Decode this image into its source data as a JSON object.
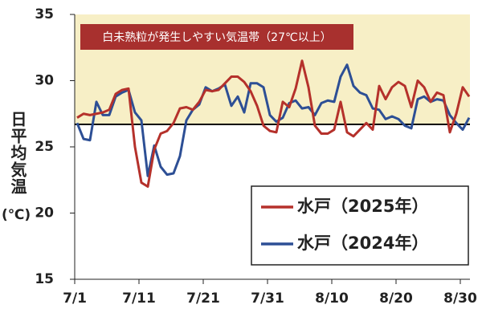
{
  "chart_data": {
    "type": "line",
    "y_label": "日平均気温",
    "y_unit": "(℃)",
    "annotation": "白未熟粒が発生しやすい気温帯（27℃以上）",
    "threshold": 26.7,
    "categories": [
      "7/1",
      null,
      null,
      null,
      null,
      null,
      null,
      null,
      null,
      null,
      "7/11",
      null,
      null,
      null,
      null,
      null,
      null,
      null,
      null,
      null,
      "7/21",
      null,
      null,
      null,
      null,
      null,
      null,
      null,
      null,
      null,
      "7/31",
      null,
      null,
      null,
      null,
      null,
      null,
      null,
      null,
      null,
      "8/10",
      null,
      null,
      null,
      null,
      null,
      null,
      null,
      null,
      null,
      "8/20",
      null,
      null,
      null,
      null,
      null,
      null,
      null,
      null,
      null,
      "8/30",
      null
    ],
    "series": [
      {
        "name": "水戸（2025年）",
        "color": "#b5312b",
        "values": [
          27.2,
          27.5,
          27.4,
          27.5,
          27.6,
          27.8,
          29.0,
          29.3,
          29.4,
          25.0,
          22.3,
          22.0,
          24.8,
          26.0,
          26.2,
          26.8,
          27.9,
          28.0,
          27.8,
          28.4,
          29.3,
          29.2,
          29.3,
          29.8,
          30.3,
          30.3,
          29.9,
          29.2,
          28.1,
          26.6,
          26.2,
          26.1,
          28.4,
          28.0,
          29.4,
          31.5,
          29.5,
          26.6,
          26.0,
          26.0,
          26.3,
          28.4,
          26.1,
          25.8,
          26.3,
          26.8,
          26.3,
          29.6,
          28.6,
          29.5,
          29.9,
          29.6,
          28.0,
          30.0,
          29.5,
          28.4,
          29.1,
          28.9,
          26.1,
          27.5,
          29.5,
          28.8
        ]
      },
      {
        "name": "水戸（2024年）",
        "color": "#2d4f95",
        "values": [
          26.8,
          25.6,
          25.5,
          28.4,
          27.4,
          27.4,
          28.8,
          29.1,
          29.3,
          27.6,
          27.0,
          22.8,
          25.1,
          23.5,
          22.9,
          23.0,
          24.3,
          27.0,
          27.8,
          28.2,
          29.5,
          29.2,
          29.4,
          29.7,
          28.1,
          28.8,
          27.6,
          29.8,
          29.8,
          29.5,
          27.4,
          26.9,
          27.2,
          28.3,
          28.5,
          27.9,
          28.0,
          27.4,
          28.3,
          28.5,
          28.4,
          30.3,
          31.2,
          29.6,
          29.1,
          28.9,
          27.9,
          27.8,
          27.1,
          27.3,
          27.1,
          26.6,
          26.4,
          28.6,
          28.8,
          28.4,
          28.6,
          28.5,
          27.4,
          26.8,
          26.3,
          27.2
        ]
      }
    ],
    "ylim": [
      15,
      35
    ],
    "yticks": [
      15,
      20,
      25,
      30,
      35
    ],
    "band_color": "#f7efc6",
    "annotation_color": "#a8302e"
  }
}
